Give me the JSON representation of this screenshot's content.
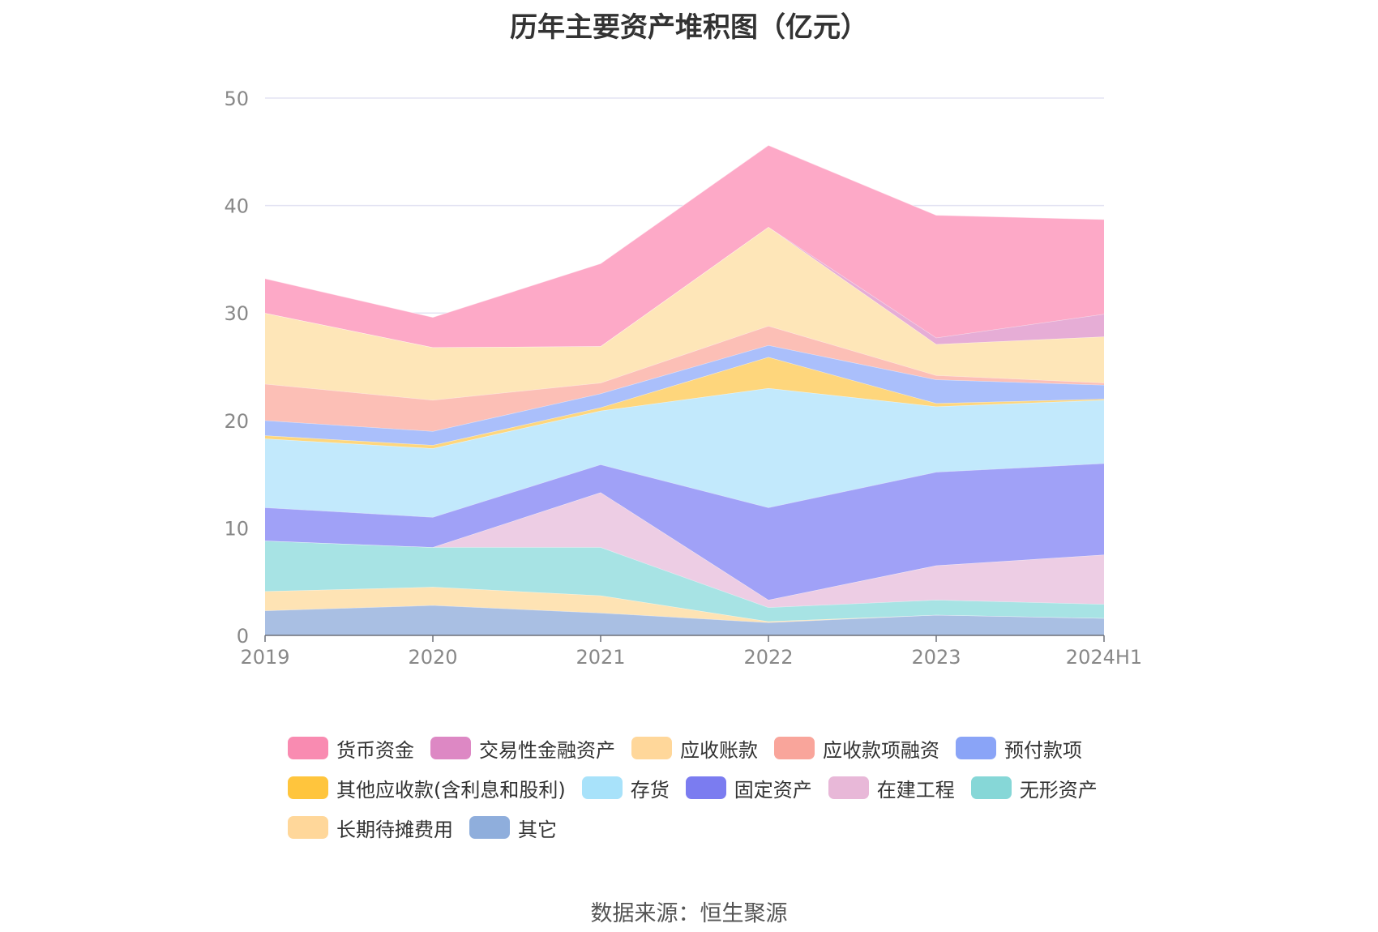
{
  "chart_data": {
    "type": "area",
    "stacked": true,
    "title": "历年主要资产堆积图（亿元）",
    "x": [
      "2019",
      "2020",
      "2021",
      "2022",
      "2023",
      "2024H1"
    ],
    "y_ticks": [
      "0",
      "10",
      "20",
      "30",
      "40",
      "50"
    ],
    "ylim": [
      0,
      50
    ],
    "grid": true,
    "legend_position": "bottom",
    "series": [
      {
        "name": "其它",
        "legend_color": "#8FAEDC",
        "fill": "#A9BFE3",
        "values": [
          2.3,
          2.8,
          2.1,
          1.2,
          1.9,
          1.6
        ]
      },
      {
        "name": "长期待摊费用",
        "legend_color": "#FFD79A",
        "fill": "#FEE3B4",
        "values": [
          1.8,
          1.7,
          1.6,
          0.1,
          0.0,
          0.0
        ]
      },
      {
        "name": "无形资产",
        "legend_color": "#86D7D7",
        "fill": "#A7E3E4",
        "values": [
          4.7,
          3.7,
          4.5,
          1.3,
          1.4,
          1.3
        ]
      },
      {
        "name": "在建工程",
        "legend_color": "#E8B8D8",
        "fill": "#EDCDE4",
        "values": [
          0.0,
          0.0,
          5.1,
          0.7,
          3.2,
          4.6
        ]
      },
      {
        "name": "固定资产",
        "legend_color": "#7B7CF0",
        "fill": "#A0A1F7",
        "values": [
          3.1,
          2.8,
          2.6,
          8.6,
          8.7,
          8.5
        ]
      },
      {
        "name": "存货",
        "legend_color": "#A8E2FA",
        "fill": "#C2E9FC",
        "values": [
          6.4,
          6.4,
          5.0,
          11.1,
          6.1,
          5.9
        ]
      },
      {
        "name": "其他应收款(含利息和股利)",
        "legend_color": "#FFC53D",
        "fill": "#FED67C",
        "values": [
          0.3,
          0.3,
          0.3,
          2.9,
          0.3,
          0.1
        ]
      },
      {
        "name": "预付款项",
        "legend_color": "#8AA4F7",
        "fill": "#AABFFB",
        "values": [
          1.4,
          1.3,
          1.3,
          1.1,
          2.2,
          1.3
        ]
      },
      {
        "name": "应收款项融资",
        "legend_color": "#F9A59B",
        "fill": "#FCBFB6",
        "values": [
          3.4,
          2.9,
          1.0,
          1.8,
          0.4,
          0.2
        ]
      },
      {
        "name": "应收账款",
        "legend_color": "#FFD79A",
        "fill": "#FEE6B8",
        "values": [
          6.6,
          4.9,
          3.4,
          9.2,
          2.9,
          4.3
        ]
      },
      {
        "name": "交易性金融资产",
        "legend_color": "#DD88C4",
        "fill": "#E6ADD6",
        "values": [
          0.0,
          0.0,
          0.0,
          0.0,
          0.6,
          2.1
        ]
      },
      {
        "name": "货币资金",
        "legend_color": "#F98BB1",
        "fill": "#FDA9C7",
        "values": [
          3.2,
          2.8,
          7.7,
          7.6,
          11.4,
          8.8
        ]
      }
    ],
    "legend_order": [
      "货币资金",
      "交易性金融资产",
      "应收账款",
      "应收款项融资",
      "预付款项",
      "其他应收款(含利息和股利)",
      "存货",
      "固定资产",
      "在建工程",
      "无形资产",
      "长期待摊费用",
      "其它"
    ]
  },
  "source": "数据来源：恒生聚源"
}
